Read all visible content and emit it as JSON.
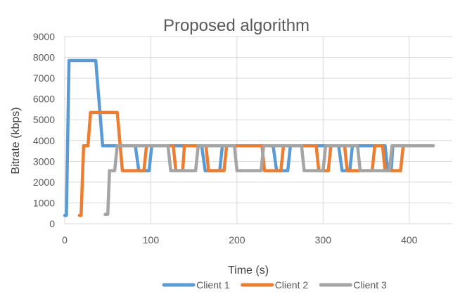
{
  "chart_data": {
    "type": "line",
    "title": "Proposed algorithm",
    "xlabel": "Time (s)",
    "ylabel": "Bitrate (kbps)",
    "xlim": [
      0,
      450
    ],
    "ylim": [
      0,
      9000
    ],
    "xticks": [
      0,
      100,
      200,
      300,
      400
    ],
    "yticks": [
      0,
      1000,
      2000,
      3000,
      4000,
      5000,
      6000,
      7000,
      8000,
      9000
    ],
    "grid": true,
    "legend_position": "bottom",
    "series": [
      {
        "name": "Client 1",
        "color": "#5B9BD5",
        "points": [
          [
            0,
            400
          ],
          [
            2,
            400
          ],
          [
            5,
            7850
          ],
          [
            36,
            7850
          ],
          [
            44,
            3750
          ],
          [
            82,
            3750
          ],
          [
            86,
            2550
          ],
          [
            98,
            2550
          ],
          [
            101,
            3750
          ],
          [
            159,
            3750
          ],
          [
            163,
            2550
          ],
          [
            180,
            2550
          ],
          [
            183,
            3750
          ],
          [
            242,
            3750
          ],
          [
            246,
            2550
          ],
          [
            259,
            2550
          ],
          [
            262,
            3750
          ],
          [
            318,
            3750
          ],
          [
            322,
            2550
          ],
          [
            331,
            2550
          ],
          [
            334,
            3750
          ],
          [
            372,
            3750
          ],
          [
            375,
            2550
          ],
          [
            379,
            2550
          ],
          [
            381,
            3750
          ]
        ]
      },
      {
        "name": "Client 2",
        "color": "#ED7D31",
        "points": [
          [
            17,
            400
          ],
          [
            19,
            400
          ],
          [
            22,
            3750
          ],
          [
            27,
            3750
          ],
          [
            30,
            5350
          ],
          [
            61,
            5350
          ],
          [
            67,
            2550
          ],
          [
            92,
            2550
          ],
          [
            95,
            3750
          ],
          [
            126,
            3750
          ],
          [
            129,
            2550
          ],
          [
            137,
            2550
          ],
          [
            139,
            3750
          ],
          [
            164,
            3750
          ],
          [
            167,
            2550
          ],
          [
            185,
            2550
          ],
          [
            188,
            3750
          ],
          [
            229,
            3750
          ],
          [
            232,
            2550
          ],
          [
            251,
            2550
          ],
          [
            254,
            3750
          ],
          [
            292,
            3750
          ],
          [
            295,
            2550
          ],
          [
            306,
            2550
          ],
          [
            309,
            3750
          ],
          [
            325,
            3750
          ],
          [
            328,
            2550
          ],
          [
            357,
            2550
          ],
          [
            360,
            3750
          ],
          [
            369,
            3750
          ],
          [
            372,
            2550
          ],
          [
            390,
            2550
          ],
          [
            393,
            3750
          ]
        ]
      },
      {
        "name": "Client 3",
        "color": "#A5A5A5",
        "points": [
          [
            47,
            450
          ],
          [
            50,
            450
          ],
          [
            52,
            2550
          ],
          [
            58,
            2550
          ],
          [
            61,
            3750
          ],
          [
            120,
            3750
          ],
          [
            123,
            2550
          ],
          [
            152,
            2550
          ],
          [
            155,
            3750
          ],
          [
            197,
            3750
          ],
          [
            200,
            2550
          ],
          [
            228,
            2550
          ],
          [
            231,
            3750
          ],
          [
            275,
            3750
          ],
          [
            278,
            2550
          ],
          [
            300,
            2550
          ],
          [
            303,
            3750
          ],
          [
            340,
            3750
          ],
          [
            343,
            2550
          ],
          [
            377,
            2550
          ],
          [
            380,
            3750
          ],
          [
            428,
            3750
          ]
        ]
      }
    ]
  }
}
